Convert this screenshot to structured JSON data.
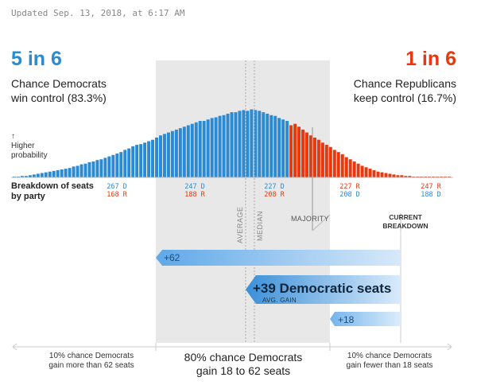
{
  "updated": "Updated Sep. 13, 2018, at 6:17 AM",
  "dem": {
    "odds": "5 in 6",
    "line1": "Chance Democrats",
    "line2": "win control (83.3%)",
    "color": "#2a8bd4"
  },
  "rep": {
    "odds": "1 in 6",
    "line1": "Chance Republicans",
    "line2": "keep control (16.7%)",
    "color": "#e8380d"
  },
  "probability_label": {
    "arrow": "↑",
    "line1": "Higher",
    "line2": "probability"
  },
  "breakdown_label": {
    "line1": "Breakdown of seats",
    "line2": "by party"
  },
  "seat_labels": [
    {
      "d": "267 D",
      "r": "168 R"
    },
    {
      "d": "247 D",
      "r": "188 R"
    },
    {
      "d": "227 D",
      "r": "208 R"
    },
    {
      "d": "227 R",
      "r": "208 D"
    },
    {
      "d": "247 R",
      "r": "188 D"
    }
  ],
  "markers": {
    "average": "AVERAGE",
    "median": "MEDIAN",
    "majority": "MAJORITY",
    "current_line1": "CURRENT",
    "current_line2": "BREAKDOWN"
  },
  "gain": {
    "high": "+62",
    "avg": "+39 Democratic seats",
    "avg_sub": "AVG. GAIN",
    "low": "+18"
  },
  "bottom": {
    "left_line1": "10% chance Democrats",
    "left_line2": "gain more than 62 seats",
    "mid_line1": "80% chance Democrats",
    "mid_line2": "gain 18 to 62 seats",
    "right_line1": "10% chance Democrats",
    "right_line2": "gain fewer than 18 seats"
  },
  "chart_data": {
    "type": "bar",
    "x": [
      287,
      286,
      285,
      284,
      283,
      282,
      281,
      280,
      279,
      278,
      277,
      276,
      275,
      274,
      273,
      272,
      271,
      270,
      269,
      268,
      267,
      266,
      265,
      264,
      263,
      262,
      261,
      260,
      259,
      258,
      257,
      256,
      255,
      254,
      253,
      252,
      251,
      250,
      249,
      248,
      247,
      246,
      245,
      244,
      243,
      242,
      241,
      240,
      239,
      238,
      237,
      236,
      235,
      234,
      233,
      232,
      231,
      230,
      229,
      228,
      227,
      226,
      225,
      224,
      223,
      222,
      221,
      220,
      219,
      218,
      217,
      216,
      215,
      214,
      213,
      212,
      211,
      210,
      209,
      208,
      207,
      206,
      205,
      204,
      203,
      202,
      201,
      200,
      199,
      198,
      197,
      196,
      195,
      194,
      193,
      192,
      191,
      190,
      189,
      188,
      187,
      186,
      185,
      184,
      183,
      182,
      181,
      180,
      179,
      178,
      177
    ],
    "values": [
      0.01,
      0.01,
      0.02,
      0.02,
      0.03,
      0.04,
      0.05,
      0.06,
      0.07,
      0.08,
      0.09,
      0.1,
      0.11,
      0.12,
      0.13,
      0.15,
      0.16,
      0.18,
      0.19,
      0.21,
      0.22,
      0.24,
      0.25,
      0.27,
      0.29,
      0.31,
      0.33,
      0.35,
      0.38,
      0.4,
      0.43,
      0.45,
      0.46,
      0.48,
      0.5,
      0.52,
      0.55,
      0.58,
      0.6,
      0.62,
      0.64,
      0.66,
      0.68,
      0.7,
      0.72,
      0.74,
      0.76,
      0.78,
      0.78,
      0.8,
      0.82,
      0.83,
      0.85,
      0.86,
      0.88,
      0.9,
      0.9,
      0.92,
      0.93,
      0.92,
      0.94,
      0.93,
      0.92,
      0.9,
      0.88,
      0.86,
      0.85,
      0.82,
      0.8,
      0.78,
      0.72,
      0.74,
      0.7,
      0.66,
      0.62,
      0.58,
      0.55,
      0.52,
      0.48,
      0.45,
      0.42,
      0.38,
      0.35,
      0.32,
      0.28,
      0.25,
      0.22,
      0.19,
      0.16,
      0.14,
      0.12,
      0.1,
      0.08,
      0.07,
      0.06,
      0.05,
      0.04,
      0.03,
      0.03,
      0.02,
      0.02,
      0.01,
      0.01,
      0.01,
      0.01,
      0.01,
      0.005,
      0.005,
      0.005,
      0.005,
      0.005
    ],
    "majority_seats": 218,
    "average_gain": 39,
    "median_gain": 37,
    "current_seats": 194,
    "ylim": [
      0,
      1
    ],
    "series_colors": {
      "dem": "#2a8bd4",
      "rep": "#e8380d"
    }
  }
}
